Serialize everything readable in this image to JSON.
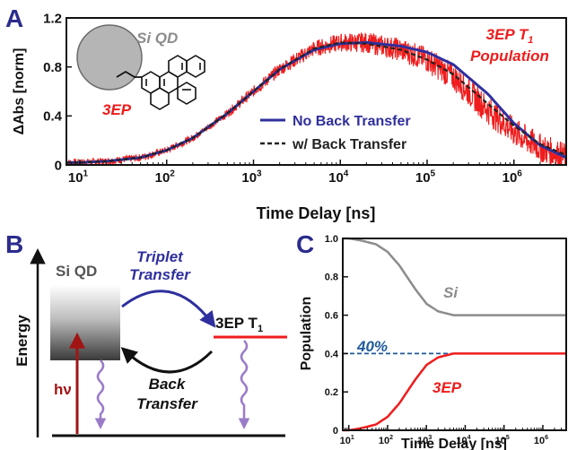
{
  "colors": {
    "axis": "#111111",
    "panel_label": "#2b2c8c",
    "data_red": "#ee1c1c",
    "fit_blue": "#2f2f9e",
    "fit_dashed": "#222222",
    "si_gray": "#8c8c8c",
    "percent_blue": "#1f5a9a",
    "arrow_purple": "#9a7bc8",
    "hv_red": "#a11414"
  },
  "panel_a": {
    "label": "A",
    "si_qd_label": "Si QD",
    "molecule_label": "3EP",
    "population_label_main": "3EP T",
    "population_label_sub": "1",
    "population_label_line2": "Population",
    "legend": {
      "no_back_transfer": "No Back Transfer",
      "with_back_transfer": "w/ Back Transfer"
    }
  },
  "panel_b": {
    "label": "B",
    "energy_label": "Energy",
    "si_qd_label": "Si QD",
    "state_label": "3EP T",
    "state_label_sub": "1",
    "triplet_transfer_1": "Triplet",
    "triplet_transfer_2": "Transfer",
    "back_transfer_1": "Back",
    "back_transfer_2": "Transfer",
    "hv_label": "hν"
  },
  "panel_c": {
    "label": "C",
    "percent_label": "40%"
  },
  "chart_data": [
    {
      "id": "panel-a",
      "type": "line",
      "title": "",
      "xlabel": "Time Delay [ns]",
      "ylabel": "ΔAbs [norm]",
      "xscale": "log",
      "xlim": [
        7,
        4000000
      ],
      "ylim": [
        0,
        1.2
      ],
      "x_tick_labels": [
        "10",
        "10",
        "10",
        "10",
        "10",
        "10"
      ],
      "x_tick_exponents": [
        "1",
        "2",
        "3",
        "4",
        "5",
        "6"
      ],
      "x_ticks": [
        10,
        100,
        1000,
        10000,
        100000,
        1000000
      ],
      "y_tick_labels": [
        "0",
        "0.4",
        "0.8",
        "1.2"
      ],
      "y_ticks": [
        0,
        0.4,
        0.8,
        1.2
      ],
      "grid": false,
      "legend_position": "bottom-right",
      "series": [
        {
          "name": "3EP T1 Population",
          "style": "noisy-data",
          "x": [
            7,
            10,
            20,
            50,
            100,
            200,
            500,
            1000,
            2000,
            5000,
            10000,
            20000,
            50000,
            100000,
            200000,
            500000,
            1000000,
            2000000,
            4000000
          ],
          "y": [
            0.02,
            0.02,
            0.03,
            0.06,
            0.12,
            0.22,
            0.42,
            0.6,
            0.78,
            0.95,
            1.0,
            1.0,
            0.94,
            0.86,
            0.72,
            0.45,
            0.27,
            0.14,
            0.06
          ]
        },
        {
          "name": "No Back Transfer",
          "style": "solid",
          "x": [
            7,
            10,
            20,
            50,
            100,
            200,
            500,
            1000,
            2000,
            5000,
            10000,
            20000,
            50000,
            100000,
            200000,
            500000,
            1000000,
            2000000,
            4000000
          ],
          "y": [
            0.02,
            0.02,
            0.03,
            0.06,
            0.12,
            0.22,
            0.42,
            0.6,
            0.78,
            0.94,
            0.99,
            1.0,
            0.97,
            0.92,
            0.82,
            0.58,
            0.34,
            0.16,
            0.06
          ]
        },
        {
          "name": "w/ Back Transfer",
          "style": "dashed",
          "x": [
            7,
            10,
            20,
            50,
            100,
            200,
            500,
            1000,
            2000,
            5000,
            10000,
            20000,
            50000,
            100000,
            200000,
            500000,
            1000000,
            2000000,
            4000000
          ],
          "y": [
            0.02,
            0.02,
            0.03,
            0.06,
            0.12,
            0.22,
            0.42,
            0.6,
            0.78,
            0.95,
            1.0,
            0.99,
            0.94,
            0.86,
            0.74,
            0.5,
            0.32,
            0.17,
            0.08
          ]
        }
      ]
    },
    {
      "id": "panel-c",
      "type": "line",
      "title": "",
      "xlabel": "Time Delay [ns]",
      "ylabel": "Population",
      "xscale": "log",
      "xlim": [
        7,
        4000000
      ],
      "ylim": [
        0,
        1.0
      ],
      "x_tick_labels": [
        "10",
        "10",
        "10",
        "10",
        "10",
        "10"
      ],
      "x_tick_exponents": [
        "1",
        "2",
        "3",
        "4",
        "5",
        "6"
      ],
      "x_ticks": [
        10,
        100,
        1000,
        10000,
        100000,
        1000000
      ],
      "y_tick_labels": [
        "0",
        "0.2",
        "0.4",
        "0.6",
        "0.8",
        "1.0"
      ],
      "y_ticks": [
        0,
        0.2,
        0.4,
        0.6,
        0.8,
        1.0
      ],
      "grid": false,
      "reference_line_y": 0.4,
      "series": [
        {
          "name": "Si",
          "x": [
            7,
            10,
            20,
            50,
            100,
            200,
            500,
            1000,
            2000,
            5000,
            10000,
            100000,
            1000000,
            4000000
          ],
          "y": [
            1.0,
            1.0,
            0.99,
            0.97,
            0.93,
            0.86,
            0.74,
            0.66,
            0.62,
            0.6,
            0.6,
            0.6,
            0.6,
            0.6
          ]
        },
        {
          "name": "3EP",
          "x": [
            7,
            10,
            20,
            50,
            100,
            200,
            500,
            1000,
            2000,
            5000,
            10000,
            100000,
            1000000,
            4000000
          ],
          "y": [
            0.0,
            0.0,
            0.01,
            0.03,
            0.07,
            0.14,
            0.26,
            0.34,
            0.38,
            0.4,
            0.4,
            0.4,
            0.4,
            0.4
          ]
        }
      ]
    }
  ]
}
